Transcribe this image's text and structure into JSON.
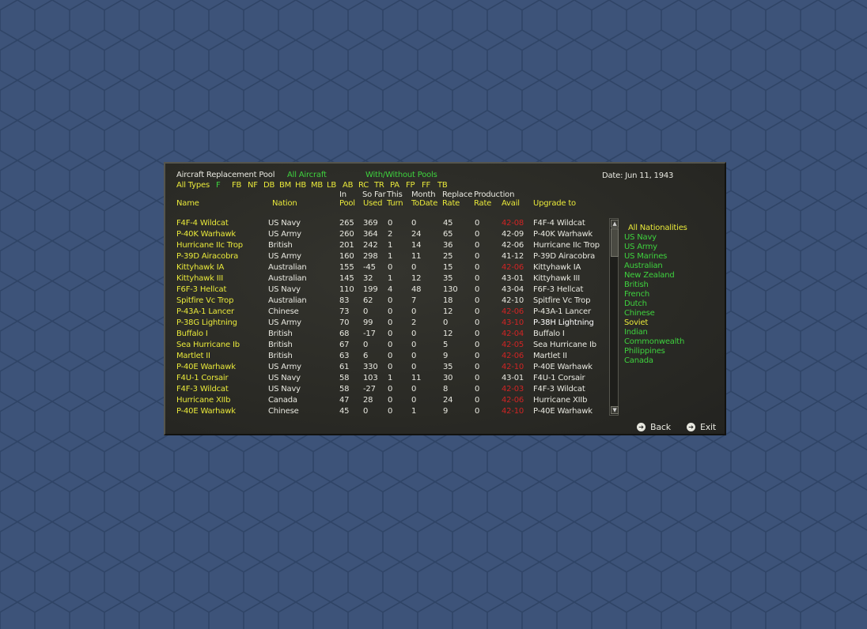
{
  "header": {
    "title": "Aircraft Replacement Pool",
    "filter_aircraft": "All Aircraft",
    "filter_pools": "With/Without Pools",
    "date": "Date: Jun 11, 1943",
    "all_types": "All Types",
    "types": [
      "F",
      "FB",
      "NF",
      "DB",
      "BM",
      "HB",
      "MB",
      "LB",
      "AB",
      "RC",
      "TR",
      "PA",
      "FP",
      "FF",
      "TB"
    ]
  },
  "columns": {
    "name": "Name",
    "nation": "Nation",
    "pool_top": "In",
    "pool_bottom": "Pool",
    "used_top": "So Far",
    "used_bottom": "Used",
    "turn_top": "This",
    "turn_bottom": "Turn",
    "todate_top": "Month",
    "todate_bottom": "ToDate",
    "rate_top": "Replace",
    "rate_bottom": "Rate",
    "production_top": "Production",
    "prate_bottom": "Rate",
    "avail_bottom": "Avail",
    "upgrade": "Upgrade to"
  },
  "rows": [
    {
      "name": "F4F-4 Wildcat",
      "nation": "US Navy",
      "pool": "265",
      "used": "369",
      "turn": "0",
      "todate": "0",
      "rate": "45",
      "prate": "0",
      "avail": "42-08",
      "avail_color": "red",
      "upgrade": "F4F-4 Wildcat"
    },
    {
      "name": "P-40K Warhawk",
      "nation": "US Army",
      "pool": "260",
      "used": "364",
      "turn": "2",
      "todate": "24",
      "rate": "65",
      "prate": "0",
      "avail": "42-09",
      "avail_color": "white",
      "upgrade": "P-40K Warhawk"
    },
    {
      "name": "Hurricane IIc Trop",
      "nation": "British",
      "pool": "201",
      "used": "242",
      "turn": "1",
      "todate": "14",
      "rate": "36",
      "prate": "0",
      "avail": "42-06",
      "avail_color": "white",
      "upgrade": "Hurricane IIc Trop"
    },
    {
      "name": "P-39D Airacobra",
      "nation": "US Army",
      "pool": "160",
      "used": "298",
      "turn": "1",
      "todate": "11",
      "rate": "25",
      "prate": "0",
      "avail": "41-12",
      "avail_color": "white",
      "upgrade": "P-39D Airacobra"
    },
    {
      "name": "Kittyhawk IA",
      "nation": "Australian",
      "pool": "155",
      "used": "-45",
      "turn": "0",
      "todate": "0",
      "rate": "15",
      "prate": "0",
      "avail": "42-06",
      "avail_color": "red",
      "upgrade": "Kittyhawk IA"
    },
    {
      "name": "Kittyhawk III",
      "nation": "Australian",
      "pool": "145",
      "used": "32",
      "turn": "1",
      "todate": "12",
      "rate": "35",
      "prate": "0",
      "avail": "43-01",
      "avail_color": "white",
      "upgrade": "Kittyhawk III"
    },
    {
      "name": "F6F-3 Hellcat",
      "nation": "US Navy",
      "pool": "110",
      "used": "199",
      "turn": "4",
      "todate": "48",
      "rate": "130",
      "prate": "0",
      "avail": "43-04",
      "avail_color": "white",
      "upgrade": "F6F-3 Hellcat"
    },
    {
      "name": "Spitfire Vc Trop",
      "nation": "Australian",
      "pool": "83",
      "used": "62",
      "turn": "0",
      "todate": "7",
      "rate": "18",
      "prate": "0",
      "avail": "42-10",
      "avail_color": "white",
      "upgrade": "Spitfire Vc Trop"
    },
    {
      "name": "P-43A-1 Lancer",
      "nation": "Chinese",
      "pool": "73",
      "used": "0",
      "turn": "0",
      "todate": "0",
      "rate": "12",
      "prate": "0",
      "avail": "42-06",
      "avail_color": "red",
      "upgrade": "P-43A-1 Lancer"
    },
    {
      "name": "P-38G Lightning",
      "nation": "US Army",
      "pool": "70",
      "used": "99",
      "turn": "0",
      "todate": "2",
      "rate": "0",
      "prate": "0",
      "avail": "43-10",
      "avail_color": "red",
      "upgrade": "P-38H Lightning",
      "upgrade_color": "white"
    },
    {
      "name": "Buffalo I",
      "nation": "British",
      "pool": "68",
      "used": "-17",
      "turn": "0",
      "todate": "0",
      "rate": "12",
      "prate": "0",
      "avail": "42-04",
      "avail_color": "red",
      "upgrade": "Buffalo I"
    },
    {
      "name": "Sea Hurricane Ib",
      "nation": "British",
      "pool": "67",
      "used": "0",
      "turn": "0",
      "todate": "0",
      "rate": "5",
      "prate": "0",
      "avail": "42-05",
      "avail_color": "red",
      "upgrade": "Sea Hurricane Ib"
    },
    {
      "name": "Martlet II",
      "nation": "British",
      "pool": "63",
      "used": "6",
      "turn": "0",
      "todate": "0",
      "rate": "9",
      "prate": "0",
      "avail": "42-06",
      "avail_color": "red",
      "upgrade": "Martlet II"
    },
    {
      "name": "P-40E Warhawk",
      "nation": "US Army",
      "pool": "61",
      "used": "330",
      "turn": "0",
      "todate": "0",
      "rate": "35",
      "prate": "0",
      "avail": "42-10",
      "avail_color": "red",
      "upgrade": "P-40E Warhawk"
    },
    {
      "name": "F4U-1 Corsair",
      "nation": "US Navy",
      "pool": "58",
      "used": "103",
      "turn": "1",
      "todate": "11",
      "rate": "30",
      "prate": "0",
      "avail": "43-01",
      "avail_color": "white",
      "upgrade": "F4U-1 Corsair"
    },
    {
      "name": "F4F-3 Wildcat",
      "nation": "US Navy",
      "pool": "58",
      "used": "-27",
      "turn": "0",
      "todate": "0",
      "rate": "8",
      "prate": "0",
      "avail": "42-03",
      "avail_color": "red",
      "upgrade": "F4F-3 Wildcat"
    },
    {
      "name": "Hurricane XIIb",
      "nation": "Canada",
      "pool": "47",
      "used": "28",
      "turn": "0",
      "todate": "0",
      "rate": "24",
      "prate": "0",
      "avail": "42-06",
      "avail_color": "red",
      "upgrade": "Hurricane XIIb"
    },
    {
      "name": "P-40E Warhawk",
      "nation": "Chinese",
      "pool": "45",
      "used": "0",
      "turn": "0",
      "todate": "1",
      "rate": "9",
      "prate": "0",
      "avail": "42-10",
      "avail_color": "red",
      "upgrade": "P-40E Warhawk"
    }
  ],
  "nationalities": [
    {
      "label": "All Nationalities",
      "color": "yellow"
    },
    {
      "label": "US Navy",
      "color": "green"
    },
    {
      "label": "US Army",
      "color": "green"
    },
    {
      "label": "US Marines",
      "color": "green"
    },
    {
      "label": "Australian",
      "color": "green"
    },
    {
      "label": "New Zealand",
      "color": "green"
    },
    {
      "label": "British",
      "color": "green"
    },
    {
      "label": "French",
      "color": "green"
    },
    {
      "label": "Dutch",
      "color": "green"
    },
    {
      "label": "Chinese",
      "color": "green"
    },
    {
      "label": "Soviet",
      "color": "yellow"
    },
    {
      "label": "Indian",
      "color": "green"
    },
    {
      "label": "Commonwealth",
      "color": "green"
    },
    {
      "label": "Philippines",
      "color": "green"
    },
    {
      "label": "Canada",
      "color": "green"
    }
  ],
  "buttons": {
    "back": "Back",
    "exit": "Exit"
  },
  "icons": {
    "back": "arrow-right-circle-icon",
    "exit": "arrow-right-circle-icon"
  }
}
